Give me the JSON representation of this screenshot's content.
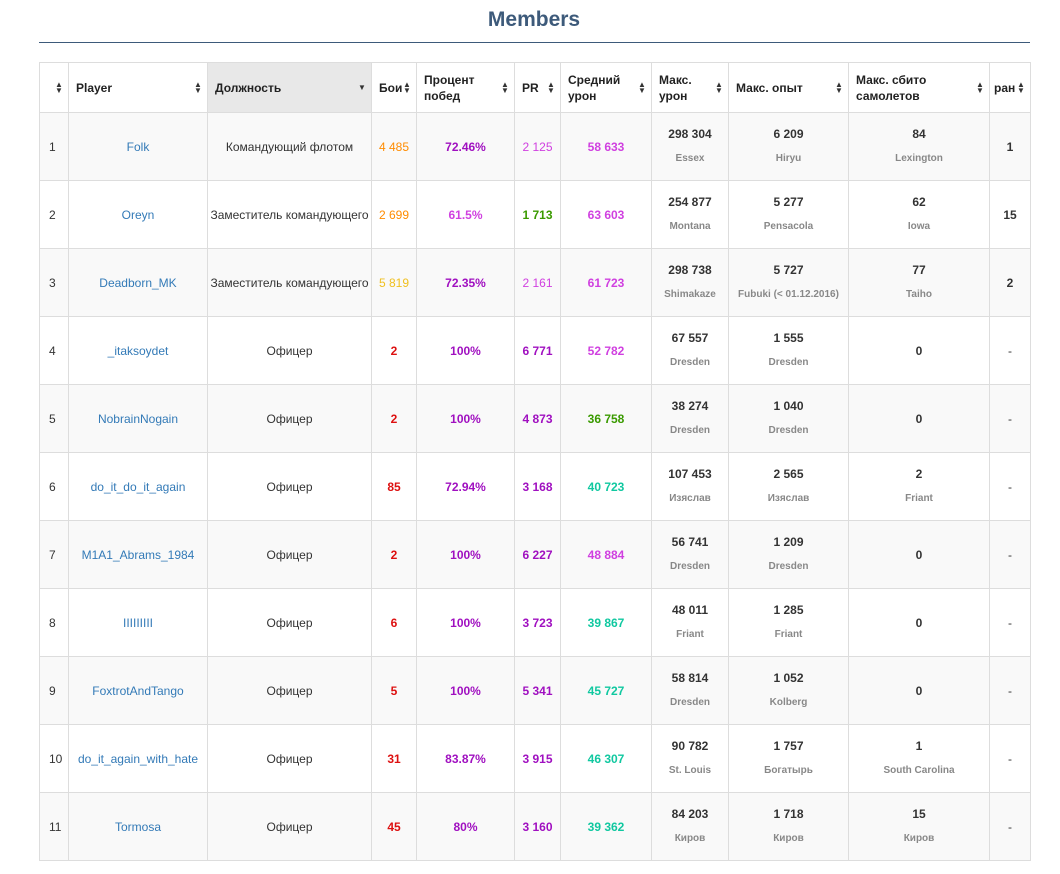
{
  "page": {
    "title": "Members"
  },
  "colors": {
    "title": "#3d5a7a",
    "orange": "#ff8c00",
    "gold": "#f0c020",
    "red": "#dd1010",
    "purple": "#a010c0",
    "magenta": "#d040e0",
    "green": "#3a9a00",
    "teal": "#10c8a0",
    "link": "#337ab7"
  },
  "table": {
    "headers": {
      "num": "",
      "player": "Player",
      "role": "Должность",
      "battles": "Бои",
      "winrate": "Процент побед",
      "pr": "PR",
      "avg_damage": "Средний урон",
      "max_damage": "Макс. урон",
      "max_exp": "Макс. опыт",
      "max_planes": "Макс. сбито самолетов",
      "rank": "ран"
    },
    "sort_icons": {
      "neutral": "up-down-icon",
      "active": "sort-desc-icon"
    },
    "rows": [
      {
        "num": "1",
        "player": "Folk",
        "role": "Командующий флотом",
        "battles": "4 485",
        "battles_color": "#ff8c00",
        "winrate": "72.46%",
        "winrate_color": "#a010c0",
        "pr": "2 125",
        "pr_color": "#d040e0",
        "avg_damage": "58 633",
        "avg_damage_color": "#d040e0",
        "max_damage": "298 304",
        "max_damage_ship": "Essex",
        "max_exp": "6 209",
        "max_exp_ship": "Hiryu",
        "max_planes": "84",
        "max_planes_ship": "Lexington",
        "rank": "1"
      },
      {
        "num": "2",
        "player": "Oreyn",
        "role": "Заместитель командующего",
        "battles": "2 699",
        "battles_color": "#ff8c00",
        "winrate": "61.5%",
        "winrate_color": "#d040e0",
        "pr": "1 713",
        "pr_color": "#3a9a00",
        "avg_damage": "63 603",
        "avg_damage_color": "#d040e0",
        "max_damage": "254 877",
        "max_damage_ship": "Montana",
        "max_exp": "5 277",
        "max_exp_ship": "Pensacola",
        "max_planes": "62",
        "max_planes_ship": "Iowa",
        "rank": "15"
      },
      {
        "num": "3",
        "player": "Deadborn_MK",
        "role": "Заместитель командующего",
        "battles": "5 819",
        "battles_color": "#f0c020",
        "winrate": "72.35%",
        "winrate_color": "#a010c0",
        "pr": "2 161",
        "pr_color": "#d040e0",
        "avg_damage": "61 723",
        "avg_damage_color": "#d040e0",
        "max_damage": "298 738",
        "max_damage_ship": "Shimakaze",
        "max_exp": "5 727",
        "max_exp_ship": "Fubuki (< 01.12.2016)",
        "max_planes": "77",
        "max_planes_ship": "Taiho",
        "rank": "2"
      },
      {
        "num": "4",
        "player": "_itaksoydet",
        "role": "Офицер",
        "battles": "2",
        "battles_color": "#dd1010",
        "winrate": "100%",
        "winrate_color": "#a010c0",
        "pr": "6 771",
        "pr_color": "#a010c0",
        "avg_damage": "52 782",
        "avg_damage_color": "#d040e0",
        "max_damage": "67 557",
        "max_damage_ship": "Dresden",
        "max_exp": "1 555",
        "max_exp_ship": "Dresden",
        "max_planes": "0",
        "max_planes_ship": "",
        "rank": "-"
      },
      {
        "num": "5",
        "player": "NobrainNogain",
        "role": "Офицер",
        "battles": "2",
        "battles_color": "#dd1010",
        "winrate": "100%",
        "winrate_color": "#a010c0",
        "pr": "4 873",
        "pr_color": "#a010c0",
        "avg_damage": "36 758",
        "avg_damage_color": "#3a9a00",
        "max_damage": "38 274",
        "max_damage_ship": "Dresden",
        "max_exp": "1 040",
        "max_exp_ship": "Dresden",
        "max_planes": "0",
        "max_planes_ship": "",
        "rank": "-"
      },
      {
        "num": "6",
        "player": "do_it_do_it_again",
        "role": "Офицер",
        "battles": "85",
        "battles_color": "#dd1010",
        "winrate": "72.94%",
        "winrate_color": "#a010c0",
        "pr": "3 168",
        "pr_color": "#a010c0",
        "avg_damage": "40 723",
        "avg_damage_color": "#10c8a0",
        "max_damage": "107 453",
        "max_damage_ship": "Изяслав",
        "max_exp": "2 565",
        "max_exp_ship": "Изяслав",
        "max_planes": "2",
        "max_planes_ship": "Friant",
        "rank": "-"
      },
      {
        "num": "7",
        "player": "M1A1_Abrams_1984",
        "role": "Офицер",
        "battles": "2",
        "battles_color": "#dd1010",
        "winrate": "100%",
        "winrate_color": "#a010c0",
        "pr": "6 227",
        "pr_color": "#a010c0",
        "avg_damage": "48 884",
        "avg_damage_color": "#d040e0",
        "max_damage": "56 741",
        "max_damage_ship": "Dresden",
        "max_exp": "1 209",
        "max_exp_ship": "Dresden",
        "max_planes": "0",
        "max_planes_ship": "",
        "rank": "-"
      },
      {
        "num": "8",
        "player": "IIIIIIIII",
        "role": "Офицер",
        "battles": "6",
        "battles_color": "#dd1010",
        "winrate": "100%",
        "winrate_color": "#a010c0",
        "pr": "3 723",
        "pr_color": "#a010c0",
        "avg_damage": "39 867",
        "avg_damage_color": "#10c8a0",
        "max_damage": "48 011",
        "max_damage_ship": "Friant",
        "max_exp": "1 285",
        "max_exp_ship": "Friant",
        "max_planes": "0",
        "max_planes_ship": "",
        "rank": "-"
      },
      {
        "num": "9",
        "player": "FoxtrotAndTango",
        "role": "Офицер",
        "battles": "5",
        "battles_color": "#dd1010",
        "winrate": "100%",
        "winrate_color": "#a010c0",
        "pr": "5 341",
        "pr_color": "#a010c0",
        "avg_damage": "45 727",
        "avg_damage_color": "#10c8a0",
        "max_damage": "58 814",
        "max_damage_ship": "Dresden",
        "max_exp": "1 052",
        "max_exp_ship": "Kolberg",
        "max_planes": "0",
        "max_planes_ship": "",
        "rank": "-"
      },
      {
        "num": "10",
        "player": "do_it_again_with_hate",
        "role": "Офицер",
        "battles": "31",
        "battles_color": "#dd1010",
        "winrate": "83.87%",
        "winrate_color": "#a010c0",
        "pr": "3 915",
        "pr_color": "#a010c0",
        "avg_damage": "46 307",
        "avg_damage_color": "#10c8a0",
        "max_damage": "90 782",
        "max_damage_ship": "St. Louis",
        "max_exp": "1 757",
        "max_exp_ship": "Богатырь",
        "max_planes": "1",
        "max_planes_ship": "South Carolina",
        "rank": "-"
      },
      {
        "num": "11",
        "player": "Tormosa",
        "role": "Офицер",
        "battles": "45",
        "battles_color": "#dd1010",
        "winrate": "80%",
        "winrate_color": "#a010c0",
        "pr": "3 160",
        "pr_color": "#a010c0",
        "avg_damage": "39 362",
        "avg_damage_color": "#10c8a0",
        "max_damage": "84 203",
        "max_damage_ship": "Киров",
        "max_exp": "1 718",
        "max_exp_ship": "Киров",
        "max_planes": "15",
        "max_planes_ship": "Киров",
        "rank": "-"
      }
    ]
  }
}
